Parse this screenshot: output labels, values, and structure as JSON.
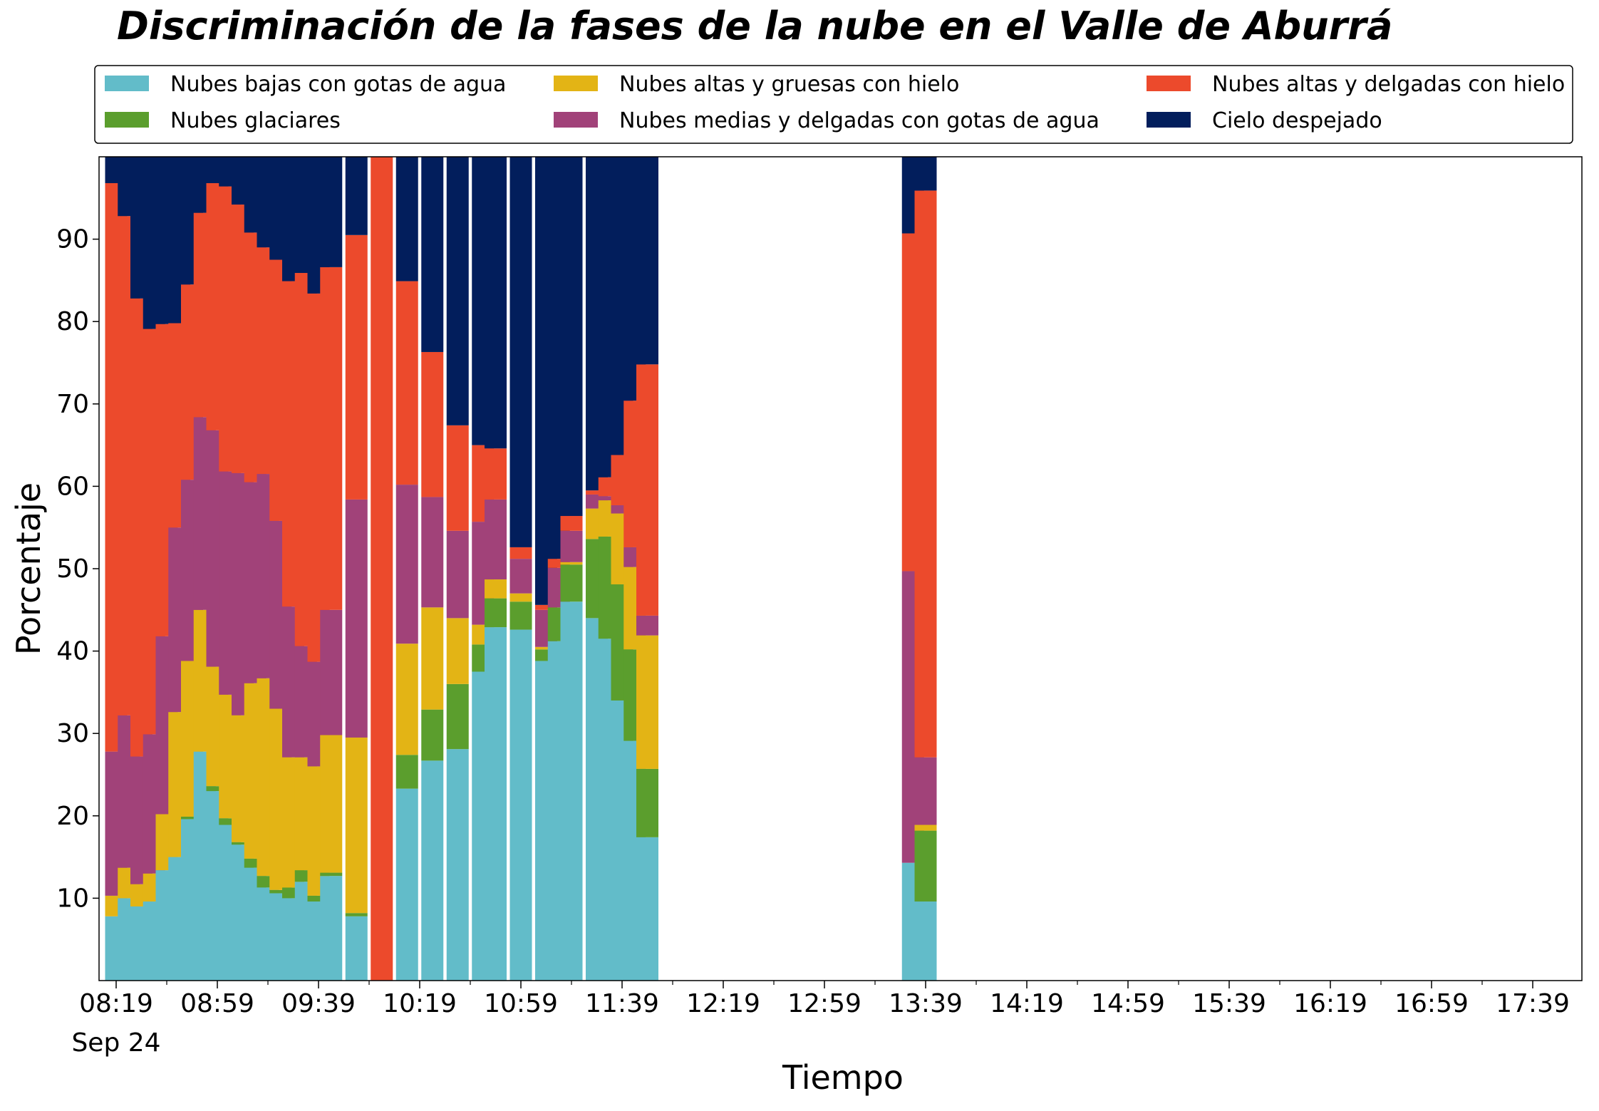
{
  "chart_data": {
    "type": "bar",
    "stacked": true,
    "title": "Discriminación de la fases de la nube en el Valle de Aburrá",
    "xlabel": "Tiempo",
    "ylabel": "Porcentaje",
    "ylim": [
      0,
      100
    ],
    "yticks": [
      "10",
      "20",
      "30",
      "40",
      "50",
      "60",
      "70",
      "80",
      "90"
    ],
    "xticks": [
      "08:19",
      "08:59",
      "09:39",
      "10:19",
      "10:59",
      "11:39",
      "12:19",
      "12:59",
      "13:39",
      "14:19",
      "14:59",
      "15:39",
      "16:19",
      "16:59",
      "17:39"
    ],
    "date_label": "Sep 24",
    "grid": false,
    "legend_position": "top",
    "series": [
      {
        "name": "Nubes bajas con gotas de agua",
        "color": "#62bcc9"
      },
      {
        "name": "Nubes glaciares",
        "color": "#5b9e2d"
      },
      {
        "name": "Nubes altas y gruesas con hielo",
        "color": "#e3b415"
      },
      {
        "name": "Nubes medias y delgadas con gotas de agua",
        "color": "#a14279"
      },
      {
        "name": "Nubes altas y delgadas con hielo",
        "color": "#ec4a2c"
      },
      {
        "name": "Cielo despejado",
        "color": "#021e5c"
      }
    ],
    "bars": [
      {
        "time": "08:19",
        "values": [
          7.8,
          0,
          2.5,
          17.5,
          69.0,
          3.2
        ]
      },
      {
        "time": "08:24",
        "values": [
          10.0,
          0,
          3.7,
          18.5,
          60.6,
          7.2
        ]
      },
      {
        "time": "08:29",
        "values": [
          9.0,
          0,
          2.7,
          15.5,
          55.6,
          17.2
        ]
      },
      {
        "time": "08:34",
        "values": [
          9.6,
          0,
          3.4,
          16.9,
          49.2,
          20.9
        ]
      },
      {
        "time": "08:39",
        "values": [
          13.4,
          0,
          6.8,
          21.6,
          37.9,
          20.3
        ]
      },
      {
        "time": "08:44",
        "values": [
          15.0,
          0,
          17.6,
          22.4,
          24.8,
          20.2
        ]
      },
      {
        "time": "08:49",
        "values": [
          19.6,
          0.3,
          18.9,
          22.0,
          23.7,
          15.5
        ]
      },
      {
        "time": "08:54",
        "values": [
          27.8,
          0,
          17.2,
          23.4,
          24.8,
          6.8
        ]
      },
      {
        "time": "08:59",
        "values": [
          23.0,
          0.6,
          14.5,
          28.7,
          30.0,
          3.2
        ]
      },
      {
        "time": "09:04",
        "values": [
          18.9,
          0.8,
          15.0,
          27.1,
          34.6,
          3.6
        ]
      },
      {
        "time": "09:09",
        "values": [
          16.5,
          0.3,
          15.4,
          29.4,
          32.6,
          5.8
        ]
      },
      {
        "time": "09:14",
        "values": [
          13.7,
          1.1,
          21.3,
          24.4,
          30.3,
          9.2
        ]
      },
      {
        "time": "09:19",
        "values": [
          11.3,
          1.4,
          24.0,
          24.8,
          27.5,
          11.0
        ]
      },
      {
        "time": "09:24",
        "values": [
          10.6,
          0.4,
          22.0,
          22.8,
          31.7,
          12.5
        ]
      },
      {
        "time": "09:29",
        "values": [
          10.0,
          1.3,
          15.8,
          18.3,
          39.5,
          15.1
        ]
      },
      {
        "time": "09:34",
        "values": [
          12.0,
          1.4,
          13.7,
          13.5,
          45.3,
          14.1
        ]
      },
      {
        "time": "09:39",
        "values": [
          9.6,
          0.7,
          15.7,
          12.7,
          44.7,
          16.6
        ]
      },
      {
        "time": "09:44",
        "values": [
          12.7,
          0.4,
          16.7,
          15.2,
          41.6,
          13.4
        ]
      },
      {
        "time": "09:54",
        "values": [
          7.8,
          0.4,
          21.3,
          28.9,
          32.1,
          9.5
        ]
      },
      {
        "time": "10:04",
        "values": [
          0,
          0,
          0,
          0,
          100.0,
          0
        ]
      },
      {
        "time": "10:14",
        "values": [
          23.3,
          4.1,
          13.5,
          19.3,
          24.7,
          15.1
        ]
      },
      {
        "time": "10:24",
        "values": [
          26.7,
          6.2,
          12.4,
          13.4,
          17.6,
          23.7
        ]
      },
      {
        "time": "10:34",
        "values": [
          28.1,
          7.9,
          8.0,
          10.6,
          12.8,
          32.6
        ]
      },
      {
        "time": "10:44",
        "values": [
          37.5,
          3.3,
          2.4,
          12.5,
          9.3,
          35.0
        ]
      },
      {
        "time": "10:49",
        "values": [
          42.9,
          3.5,
          2.3,
          9.7,
          6.2,
          35.4
        ]
      },
      {
        "time": "10:59",
        "values": [
          42.6,
          3.4,
          1.0,
          4.2,
          1.4,
          47.4
        ]
      },
      {
        "time": "11:09",
        "values": [
          38.8,
          1.4,
          0.3,
          4.5,
          0.6,
          54.4
        ]
      },
      {
        "time": "11:14",
        "values": [
          41.2,
          4.1,
          0,
          4.8,
          1.1,
          48.8
        ]
      },
      {
        "time": "11:19",
        "values": [
          46.0,
          4.5,
          0.3,
          3.8,
          1.8,
          43.6
        ]
      },
      {
        "time": "11:29",
        "values": [
          44.0,
          9.6,
          3.7,
          1.7,
          0.5,
          40.5
        ]
      },
      {
        "time": "11:34",
        "values": [
          41.5,
          12.4,
          4.4,
          0.5,
          2.3,
          38.9
        ]
      },
      {
        "time": "11:39",
        "values": [
          34.0,
          14.1,
          8.6,
          1.0,
          6.1,
          36.2
        ]
      },
      {
        "time": "11:44",
        "values": [
          29.1,
          11.1,
          10.0,
          2.4,
          17.8,
          29.6
        ]
      },
      {
        "time": "11:49",
        "values": [
          17.4,
          8.3,
          16.2,
          2.4,
          30.5,
          25.2
        ]
      },
      {
        "time": "13:34",
        "values": [
          14.3,
          0,
          0,
          35.4,
          41.0,
          9.3
        ]
      },
      {
        "time": "13:39",
        "values": [
          9.6,
          8.6,
          0.7,
          8.2,
          68.8,
          4.1
        ]
      }
    ]
  }
}
